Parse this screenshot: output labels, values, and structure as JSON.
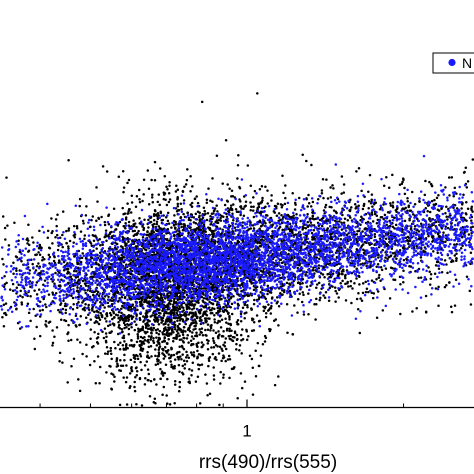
{
  "chart_data": {
    "type": "scatter",
    "title": "",
    "xlabel": "rrs(490)/rrs(555)",
    "ylabel": "",
    "xscale": "log",
    "xlim": [
      0.3,
      3.0
    ],
    "x_tick_labels": [
      {
        "value": 1,
        "label": "1"
      }
    ],
    "x_minor_ticks": [
      0.4,
      0.5,
      0.6,
      0.7,
      0.8,
      0.9,
      2,
      3
    ],
    "legend": {
      "placement": "top-right",
      "entries": [
        "N"
      ]
    },
    "grid": false,
    "colors": {
      "black_series": "#000000",
      "blue_series": "#1a1aff"
    },
    "series": [
      {
        "color": "#000000",
        "point_groups": [
          {
            "x_center": 0.72,
            "x_spread": 0.085,
            "y_center": 0.28,
            "y_spread": 0.11,
            "count": 2600
          },
          {
            "x_center": 0.82,
            "x_spread": 0.19,
            "y_center": 0.36,
            "y_spread": 0.07,
            "count": 2000
          },
          {
            "x_center": 1.4,
            "x_spread": 0.35,
            "y_center": 0.38,
            "y_spread": 0.07,
            "count": 1200
          },
          {
            "x_center": 2.1,
            "x_spread": 0.3,
            "y_center": 0.44,
            "y_spread": 0.05,
            "count": 800
          }
        ],
        "points": [
          {
            "x": 1.35,
            "y": 1.0
          },
          {
            "x": 0.82,
            "y": 0.75
          },
          {
            "x": 1.28,
            "y": 0.62
          },
          {
            "x": 1.3,
            "y": 0.605
          },
          {
            "x": 1.33,
            "y": 0.595
          },
          {
            "x": 1.4,
            "y": 0.56
          },
          {
            "x": 1.46,
            "y": 0.545
          },
          {
            "x": 1.52,
            "y": 0.525
          },
          {
            "x": 1.58,
            "y": 0.51
          },
          {
            "x": 1.64,
            "y": 0.495
          },
          {
            "x": 1.72,
            "y": 0.475
          },
          {
            "x": 1.8,
            "y": 0.46
          },
          {
            "x": 0.48,
            "y": 0.47
          },
          {
            "x": 0.44,
            "y": 0.4
          },
          {
            "x": 0.4,
            "y": 0.33
          }
        ]
      },
      {
        "color": "#1a1aff",
        "point_groups": [
          {
            "x_center": 0.8,
            "x_spread": 0.14,
            "y_center": 0.35,
            "y_spread": 0.05,
            "count": 2400
          },
          {
            "x_center": 1.5,
            "x_spread": 0.45,
            "y_center": 0.4,
            "y_spread": 0.055,
            "count": 2400
          },
          {
            "x_center": 2.4,
            "x_spread": 0.25,
            "y_center": 0.43,
            "y_spread": 0.04,
            "count": 700
          }
        ],
        "points": [
          {
            "x": 0.75,
            "y": 0.52
          },
          {
            "x": 2.15,
            "y": 0.48
          },
          {
            "x": 1.0,
            "y": 0.45
          }
        ]
      }
    ]
  }
}
